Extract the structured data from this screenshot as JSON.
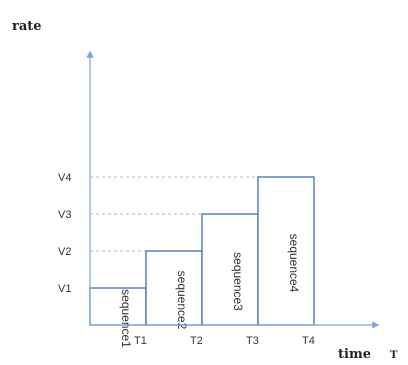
{
  "chart_data": {
    "type": "bar",
    "ylabel": "rate",
    "xlabel": "time",
    "xlabel_suffix": "T",
    "x_ticks": [
      "T1",
      "T2",
      "T3",
      "T4"
    ],
    "y_ticks": [
      "V1",
      "V2",
      "V3",
      "V4"
    ],
    "y_values": [
      1,
      2,
      3,
      4
    ],
    "ylim": [
      0,
      4.6
    ],
    "series": [
      {
        "label": "sequence1",
        "x_start": 0,
        "x_end": 1,
        "value": 1
      },
      {
        "label": "sequence2",
        "x_start": 1,
        "x_end": 2,
        "value": 2
      },
      {
        "label": "sequence3",
        "x_start": 2,
        "x_end": 3,
        "value": 3
      },
      {
        "label": "sequence4",
        "x_start": 3,
        "x_end": 4,
        "value": 4
      }
    ],
    "grid": "dashed-horizontal-at-levels",
    "colors": {
      "axis": "#7aa3d6",
      "bar_stroke": "#3b6fb0",
      "grid": "#9cb8dd",
      "text": "#333333"
    }
  }
}
